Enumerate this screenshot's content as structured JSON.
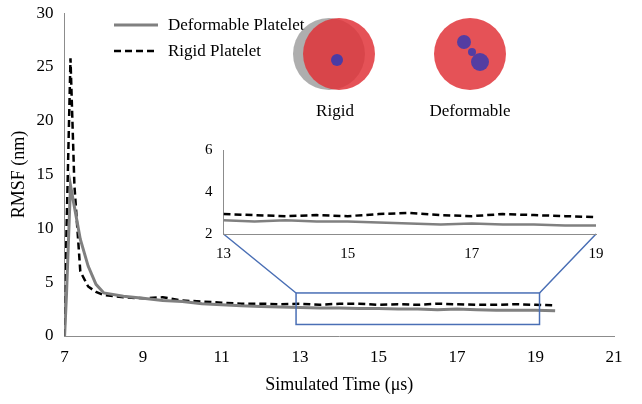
{
  "chart_data": [
    {
      "type": "line",
      "x_label": "Simulated Time (μs)",
      "y_label": "RMSF (nm)",
      "x": [
        7,
        7.05,
        7.15,
        7.25,
        7.4,
        7.6,
        7.8,
        8,
        8.5,
        9,
        9.5,
        10,
        10.5,
        11,
        11.5,
        12,
        12.5,
        13,
        13.5,
        14,
        14.5,
        15,
        15.5,
        16,
        16.5,
        17,
        17.5,
        18,
        18.5,
        19,
        19.5
      ],
      "series": [
        {
          "name": "Deformable Platelet",
          "color": "#808080",
          "line_style": "solid",
          "values": [
            0,
            4,
            14,
            12,
            9,
            6.5,
            4.8,
            4.0,
            3.7,
            3.5,
            3.3,
            3.2,
            3.0,
            2.9,
            2.8,
            2.75,
            2.7,
            2.65,
            2.6,
            2.6,
            2.55,
            2.55,
            2.5,
            2.5,
            2.45,
            2.5,
            2.45,
            2.4,
            2.4,
            2.4,
            2.35
          ]
        },
        {
          "name": "Rigid Platelet",
          "color": "#000000",
          "line_style": "dashed",
          "values": [
            0,
            10,
            25.8,
            14,
            6,
            4.6,
            4.1,
            3.8,
            3.6,
            3.5,
            3.6,
            3.3,
            3.2,
            3.1,
            3.0,
            3.0,
            2.95,
            3.0,
            2.9,
            3.0,
            3.0,
            2.9,
            2.95,
            2.9,
            3.0,
            2.95,
            2.9,
            2.9,
            2.95,
            2.9,
            2.85
          ]
        }
      ],
      "xlim": [
        7,
        21
      ],
      "xticks": [
        7,
        9,
        11,
        13,
        15,
        17,
        19,
        21
      ],
      "ylim": [
        0,
        30
      ],
      "yticks": [
        0,
        5,
        10,
        15,
        20,
        25,
        30
      ],
      "grid": false,
      "legend": "upper left",
      "annotations": [
        "Rigid",
        "Deformable"
      ]
    },
    {
      "type": "line",
      "x": [
        13,
        13.5,
        14,
        14.5,
        15,
        15.5,
        16,
        16.5,
        17,
        17.5,
        18,
        18.5,
        19
      ],
      "series": [
        {
          "name": "Deformable Platelet",
          "color": "#808080",
          "line_style": "solid",
          "values": [
            2.65,
            2.6,
            2.65,
            2.6,
            2.6,
            2.55,
            2.5,
            2.45,
            2.5,
            2.45,
            2.45,
            2.4,
            2.4
          ]
        },
        {
          "name": "Rigid Platelet",
          "color": "#000000",
          "line_style": "dashed",
          "values": [
            2.95,
            2.9,
            2.85,
            2.9,
            2.85,
            2.95,
            3.0,
            2.9,
            2.85,
            2.95,
            2.9,
            2.85,
            2.8
          ]
        }
      ],
      "xlim": [
        13,
        19
      ],
      "xticks": [
        13,
        15,
        17,
        19
      ],
      "ylim": [
        2,
        6
      ],
      "yticks": [
        2,
        4,
        6
      ],
      "grid": false
    }
  ]
}
